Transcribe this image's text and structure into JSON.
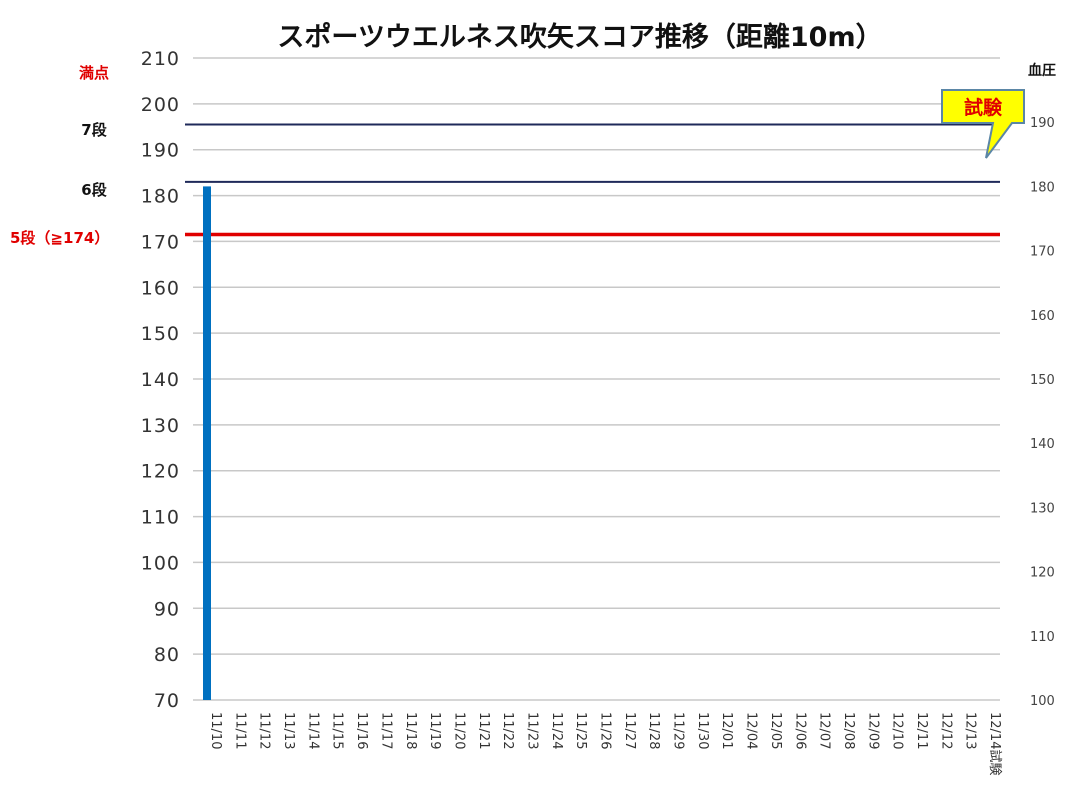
{
  "chart_data": {
    "type": "bar",
    "title": "スポーツウエルネス吹矢スコア推移（距離10m）",
    "categories": [
      "11/10",
      "11/11",
      "11/12",
      "11/13",
      "11/14",
      "11/15",
      "11/16",
      "11/17",
      "11/18",
      "11/19",
      "11/20",
      "11/21",
      "11/22",
      "11/23",
      "11/24",
      "11/25",
      "11/26",
      "11/27",
      "11/28",
      "11/29",
      "11/30",
      "12/01",
      "12/04",
      "12/05",
      "12/06",
      "12/07",
      "12/08",
      "12/09",
      "12/10",
      "12/11",
      "12/12",
      "12/13",
      "12/14試験"
    ],
    "series": [
      {
        "values": [
          182,
          null,
          null,
          null,
          null,
          null,
          null,
          null,
          null,
          null,
          null,
          null,
          null,
          null,
          null,
          null,
          null,
          null,
          null,
          null,
          null,
          null,
          null,
          null,
          null,
          null,
          null,
          null,
          null,
          null,
          null,
          null,
          null
        ],
        "color": "#0070c0"
      }
    ],
    "ylim": [
      70,
      210
    ],
    "yticks": [
      70,
      80,
      90,
      100,
      110,
      120,
      130,
      140,
      150,
      160,
      170,
      180,
      190,
      200,
      210
    ],
    "y2label": "血圧",
    "y2lim": [
      100,
      200
    ],
    "y2ticks": [
      100,
      110,
      120,
      130,
      140,
      150,
      160,
      170,
      180,
      190
    ],
    "grid": true,
    "reference_lines": [
      {
        "label": "満点",
        "value": 210,
        "color": "#e00000",
        "line": false
      },
      {
        "label": "7段",
        "value": 195.5,
        "color": "#111111",
        "line": true,
        "line_color": "#1f2a5a"
      },
      {
        "label": "6段",
        "value": 183,
        "color": "#111111",
        "line": true,
        "line_color": "#1f2a5a"
      },
      {
        "label": "5段（≧174）",
        "value": 171.5,
        "color": "#e00000",
        "line": true,
        "line_color": "#e00000"
      }
    ],
    "annotations": [
      {
        "text": "試験",
        "category": "12/14試験",
        "fill": "#ffff00",
        "text_color": "#e00000"
      }
    ]
  }
}
